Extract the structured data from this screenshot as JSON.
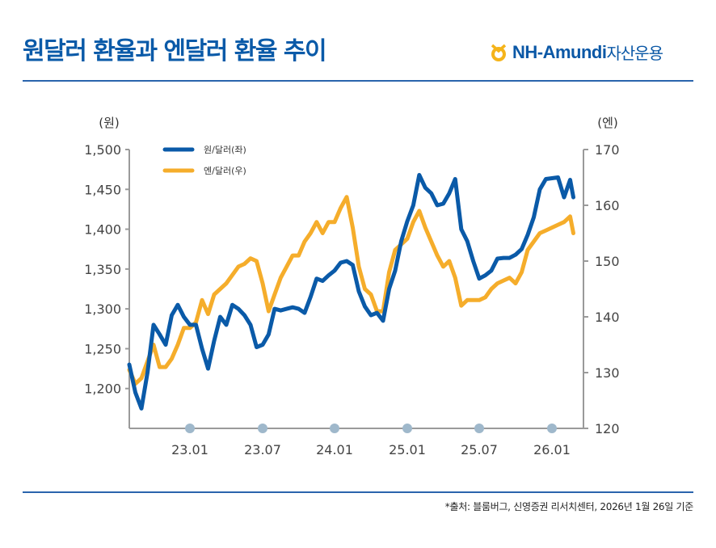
{
  "header": {
    "title": "원달러 환율과 엔달러 환율 추이",
    "logo_text": "NH-Amundi",
    "logo_sub": "자산운용"
  },
  "footer": {
    "source": "*출처: 블룸버그, 신영증권 리서치센터, 2026년 1월 26일 기준"
  },
  "colors": {
    "krw": "#0a5aa8",
    "jpy": "#f5ad2b",
    "accent": "#2a64ad",
    "tick_dot": "#9fb8cb"
  },
  "chart_data": {
    "type": "line",
    "left_axis": {
      "unit_label": "(원)",
      "ticks": [
        "1,200",
        "1,250",
        "1,300",
        "1,350",
        "1,400",
        "1,450",
        "1,500"
      ],
      "tick_values": [
        1200,
        1250,
        1300,
        1350,
        1400,
        1450,
        1500
      ],
      "ylim": [
        1150,
        1500
      ]
    },
    "right_axis": {
      "unit_label": "(엔)",
      "ticks": [
        "120",
        "130",
        "140",
        "150",
        "160",
        "170"
      ],
      "tick_values": [
        120,
        130,
        140,
        150,
        160,
        170
      ],
      "ylim": [
        120,
        170
      ]
    },
    "x_ticks": [
      {
        "label": "23.01",
        "date": "2023-01-01"
      },
      {
        "label": "23.07",
        "date": "2023-07-01"
      },
      {
        "label": "24.01",
        "date": "2024-01-01"
      },
      {
        "label": "25.01",
        "date": "2025-01-01"
      },
      {
        "label": "25.07",
        "date": "2025-07-01"
      },
      {
        "label": "26.01",
        "date": "2026-01-01"
      }
    ],
    "legend_position": "top-left",
    "x": [
      "2022-08-01",
      "2022-08-16",
      "2022-09-01",
      "2022-09-16",
      "2022-10-01",
      "2022-10-16",
      "2022-11-01",
      "2022-11-16",
      "2022-12-01",
      "2022-12-16",
      "2023-01-01",
      "2023-01-16",
      "2023-02-01",
      "2023-02-16",
      "2023-03-01",
      "2023-03-16",
      "2023-04-01",
      "2023-04-16",
      "2023-05-01",
      "2023-05-16",
      "2023-06-01",
      "2023-06-16",
      "2023-07-01",
      "2023-07-16",
      "2023-08-01",
      "2023-08-16",
      "2023-09-01",
      "2023-09-16",
      "2023-10-01",
      "2023-10-16",
      "2023-11-01",
      "2023-11-16",
      "2023-12-01",
      "2023-12-16",
      "2024-01-01",
      "2024-02-01",
      "2024-03-01",
      "2024-04-01",
      "2024-05-01",
      "2024-06-01",
      "2024-07-01",
      "2024-08-01",
      "2024-09-01",
      "2024-10-01",
      "2024-11-01",
      "2024-12-01",
      "2025-01-01",
      "2025-01-16",
      "2025-02-01",
      "2025-02-16",
      "2025-03-01",
      "2025-03-16",
      "2025-04-01",
      "2025-04-16",
      "2025-05-01",
      "2025-05-16",
      "2025-06-01",
      "2025-06-16",
      "2025-07-01",
      "2025-07-16",
      "2025-08-01",
      "2025-08-16",
      "2025-09-01",
      "2025-09-16",
      "2025-10-01",
      "2025-10-16",
      "2025-11-01",
      "2025-11-16",
      "2025-12-01",
      "2025-12-16",
      "2026-01-01",
      "2026-01-16",
      "2026-02-01",
      "2026-02-16",
      "2026-02-24"
    ],
    "series": [
      {
        "name": "원/달러(좌)",
        "axis": "left",
        "values": [
          1230,
          1195,
          1175,
          1220,
          1280,
          1268,
          1255,
          1292,
          1305,
          1290,
          1280,
          1280,
          1250,
          1225,
          1260,
          1290,
          1280,
          1305,
          1300,
          1292,
          1280,
          1252,
          1255,
          1268,
          1300,
          1298,
          1300,
          1302,
          1300,
          1295,
          1315,
          1338,
          1335,
          1342,
          1348,
          1358,
          1360,
          1355,
          1322,
          1303,
          1292,
          1295,
          1285,
          1325,
          1348,
          1385,
          1410,
          1430,
          1468,
          1452,
          1445,
          1430,
          1432,
          1445,
          1463,
          1400,
          1385,
          1360,
          1338,
          1342,
          1348,
          1363,
          1364,
          1364,
          1368,
          1375,
          1393,
          1415,
          1450,
          1463,
          1464,
          1465,
          1440,
          1462,
          1440
        ]
      },
      {
        "name": "엔/달러(우)",
        "axis": "right",
        "values": [
          130.5,
          128,
          129,
          132,
          135,
          131,
          131,
          132.5,
          135,
          138,
          138,
          139,
          143,
          140.5,
          144,
          145,
          146,
          147.5,
          149,
          149.5,
          150.5,
          150,
          146,
          141,
          144,
          147,
          149,
          151,
          151,
          153.5,
          155,
          157,
          155,
          157,
          157,
          159.5,
          161.5,
          156,
          149,
          145,
          144,
          141,
          141,
          148,
          152,
          153,
          154,
          157,
          159,
          156,
          153.5,
          151,
          149,
          150,
          147,
          142,
          143,
          143,
          143,
          143.5,
          145,
          146,
          146.5,
          147,
          146,
          148,
          152,
          153.5,
          155,
          155.5,
          156,
          156.5,
          157,
          158,
          155
        ]
      }
    ]
  }
}
